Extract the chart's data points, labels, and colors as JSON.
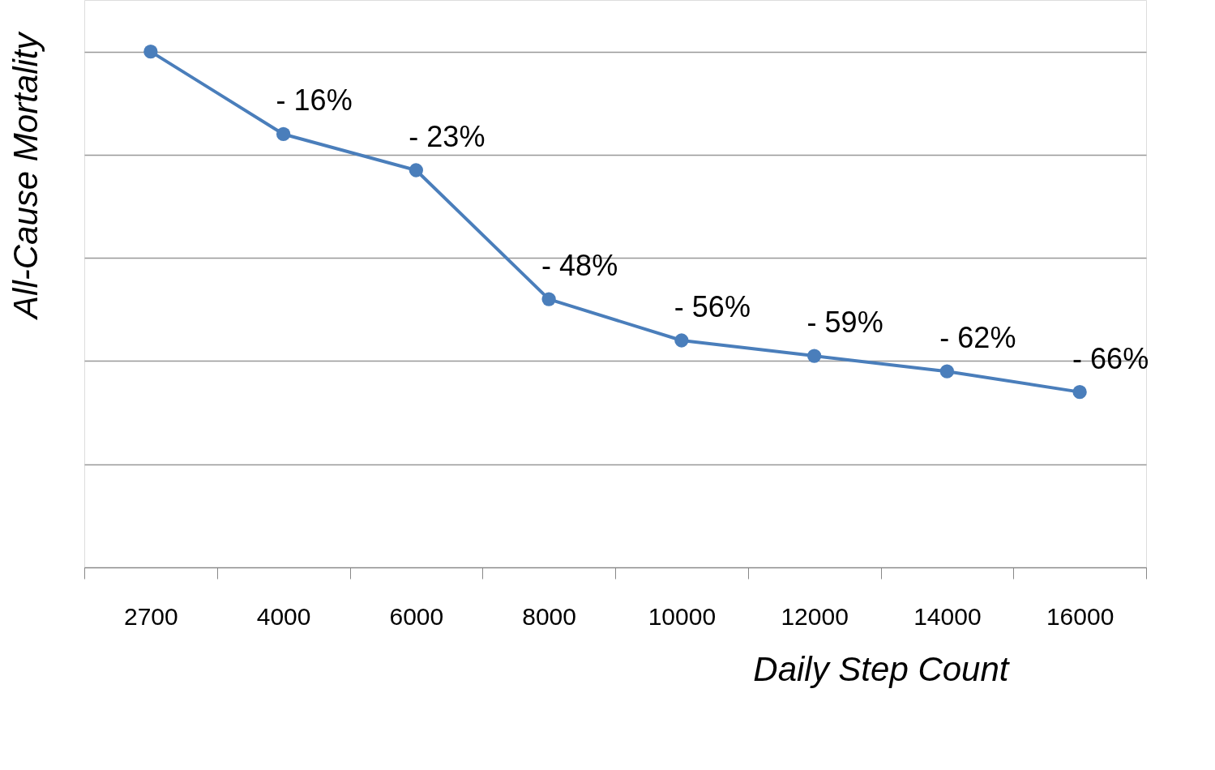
{
  "chart_data": {
    "type": "line",
    "xlabel": "Daily Step Count",
    "ylabel": "All-Cause Mortality",
    "categories": [
      "2700",
      "4000",
      "6000",
      "8000",
      "10000",
      "12000",
      "14000",
      "16000"
    ],
    "series": [
      {
        "color": "#4a7ebb",
        "values": [
          0,
          -16,
          -23,
          -48,
          -56,
          -59,
          -62,
          -66
        ],
        "value_labels": [
          null,
          "- 16%",
          "- 23%",
          "- 48%",
          "- 56%",
          "- 59%",
          "- 62%",
          "- 66%"
        ]
      }
    ],
    "ylim": [
      -100,
      10
    ],
    "yticks": [
      {
        "value": -100,
        "label": null
      },
      {
        "value": -80,
        "label": null
      },
      {
        "value": -60,
        "label": null
      },
      {
        "value": -40,
        "label": null
      },
      {
        "value": -20,
        "label": null
      },
      {
        "value": 0,
        "label": null
      }
    ],
    "tick_labels": "x",
    "grid": "y",
    "marker": "circle",
    "line_style": "solid",
    "legend": false
  }
}
